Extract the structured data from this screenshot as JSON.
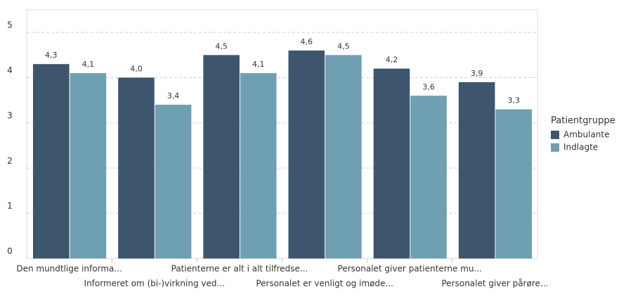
{
  "chart_data": {
    "type": "bar",
    "categories": [
      "Den mundtlige informa...",
      "Informeret om (bi-)virkning ved...",
      "Patienterne er alt i alt tilfredse...",
      "Personalet er venligt og imøde...",
      "Personalet giver patienterne mu...",
      "Personalet giver pårøre..."
    ],
    "series": [
      {
        "name": "Ambulante",
        "color": "#3d566e",
        "values": [
          4.3,
          4.0,
          4.5,
          4.6,
          4.2,
          3.9
        ],
        "value_labels": [
          "4,3",
          "4,0",
          "4,5",
          "4,6",
          "4,2",
          "3,9"
        ]
      },
      {
        "name": "Indlagte",
        "color": "#6f9fb3",
        "values": [
          4.1,
          3.4,
          4.1,
          4.5,
          3.6,
          3.3
        ],
        "value_labels": [
          "4,1",
          "3,4",
          "4,1",
          "4,5",
          "3,6",
          "3,3"
        ]
      }
    ],
    "legend_title": "Patientgruppe",
    "ylim": [
      0,
      5.5
    ],
    "yticks": [
      0,
      1,
      2,
      3,
      4,
      5
    ],
    "grid": true
  }
}
